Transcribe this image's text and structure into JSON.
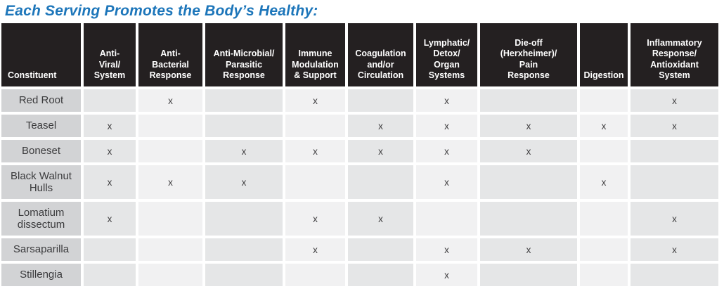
{
  "title": "Each Serving Promotes the Body’s Healthy:",
  "colors": {
    "title_blue": "#1d76ba",
    "header_bg": "#242021",
    "header_text": "#ffffff",
    "constituent_cell_bg": "#d2d3d5",
    "column_dark_bg": "#e5e6e7",
    "column_light_bg": "#f1f1f2",
    "mark_color": "#414042"
  },
  "table": {
    "mark_symbol": "x",
    "columns": [
      {
        "label": "Constituent"
      },
      {
        "label": "Anti-\nViral/\nSystem"
      },
      {
        "label": "Anti-\nBacterial\nResponse"
      },
      {
        "label": "Anti-Microbial/\nParasitic\nResponse"
      },
      {
        "label": "Immune\nModulation\n& Support"
      },
      {
        "label": "Coagulation\nand/or\nCirculation"
      },
      {
        "label": "Lymphatic/\nDetox/\nOrgan\nSystems"
      },
      {
        "label": "Die-off\n(Herxheimer)/\nPain\nResponse"
      },
      {
        "label": "Digestion"
      },
      {
        "label": "Inflammatory\nResponse/\nAntioxidant\nSystem"
      }
    ],
    "rows": [
      {
        "name": "Red Root",
        "marks": [
          "",
          "x",
          "",
          "x",
          "",
          "x",
          "",
          "",
          "x"
        ]
      },
      {
        "name": "Teasel",
        "marks": [
          "x",
          "",
          "",
          "",
          "x",
          "x",
          "x",
          "x",
          "x"
        ]
      },
      {
        "name": "Boneset",
        "marks": [
          "x",
          "",
          "x",
          "x",
          "x",
          "x",
          "x",
          "",
          ""
        ]
      },
      {
        "name": "Black Walnut Hulls",
        "marks": [
          "x",
          "x",
          "x",
          "",
          "",
          "x",
          "",
          "x",
          ""
        ]
      },
      {
        "name": "Lomatium dissectum",
        "marks": [
          "x",
          "",
          "",
          "x",
          "x",
          "",
          "",
          "",
          "x"
        ]
      },
      {
        "name": "Sarsaparilla",
        "marks": [
          "",
          "",
          "",
          "x",
          "",
          "x",
          "x",
          "",
          "x"
        ]
      },
      {
        "name": "Stillengia",
        "marks": [
          "",
          "",
          "",
          "",
          "",
          "x",
          "",
          "",
          ""
        ]
      }
    ]
  }
}
